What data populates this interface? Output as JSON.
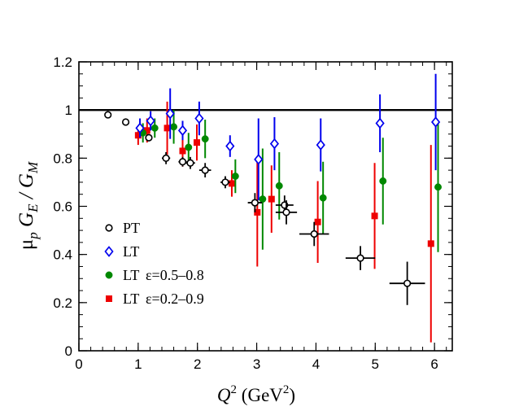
{
  "chart_data": {
    "type": "scatter",
    "xlim": [
      0,
      6.3
    ],
    "ylim": [
      0,
      1.2
    ],
    "x_ticks": [
      "0",
      "1",
      "2",
      "3",
      "4",
      "5",
      "6"
    ],
    "y_ticks": [
      "0",
      "0.2",
      "0.4",
      "0.6",
      "0.8",
      "1",
      "1.2"
    ],
    "reference_line_y": 1,
    "xlabel": {
      "main": "Q",
      "sup": "2",
      "unit_open": " (GeV",
      "unit_sup": "2",
      "unit_close": ")"
    },
    "ylabel": {
      "mu": "μ",
      "mu_sub": "p",
      "ge": " G",
      "ge_sub": "E",
      "slash": " / G",
      "gm_sub": "M"
    },
    "legend_position": "bottom-left",
    "series": [
      {
        "name": "PT",
        "marker": "circle-open",
        "color": "#000000",
        "points": [
          {
            "x": 0.49,
            "y": 0.98,
            "ye": 0.0,
            "xe": 0.0
          },
          {
            "x": 0.79,
            "y": 0.95,
            "ye": 0.0,
            "xe": 0.0
          },
          {
            "x": 1.18,
            "y": 0.885,
            "ye": 0.015,
            "xe": 0.0
          },
          {
            "x": 1.47,
            "y": 0.8,
            "ye": 0.025,
            "xe": 0.07
          },
          {
            "x": 1.75,
            "y": 0.785,
            "ye": 0.02,
            "xe": 0.07
          },
          {
            "x": 1.88,
            "y": 0.78,
            "ye": 0.025,
            "xe": 0.08
          },
          {
            "x": 2.13,
            "y": 0.75,
            "ye": 0.03,
            "xe": 0.1
          },
          {
            "x": 2.47,
            "y": 0.7,
            "ye": 0.025,
            "xe": 0.08
          },
          {
            "x": 2.97,
            "y": 0.615,
            "ye": 0.04,
            "xe": 0.12
          },
          {
            "x": 3.47,
            "y": 0.605,
            "ye": 0.04,
            "xe": 0.15
          },
          {
            "x": 3.5,
            "y": 0.575,
            "ye": 0.05,
            "xe": 0.18
          },
          {
            "x": 3.97,
            "y": 0.485,
            "ye": 0.05,
            "xe": 0.25
          },
          {
            "x": 4.75,
            "y": 0.385,
            "ye": 0.05,
            "xe": 0.25
          },
          {
            "x": 5.54,
            "y": 0.28,
            "ye": 0.09,
            "xe": 0.3
          }
        ]
      },
      {
        "name": "LT",
        "marker": "diamond-open",
        "color": "#0000ee",
        "points": [
          {
            "x": 1.03,
            "y": 0.925,
            "ye": 0.04
          },
          {
            "x": 1.21,
            "y": 0.955,
            "ye": 0.04
          },
          {
            "x": 1.54,
            "y": 0.985,
            "ye": 0.105
          },
          {
            "x": 1.75,
            "y": 0.915,
            "ye": 0.04
          },
          {
            "x": 2.03,
            "y": 0.965,
            "ye": 0.07
          },
          {
            "x": 2.55,
            "y": 0.85,
            "ye": 0.045
          },
          {
            "x": 3.03,
            "y": 0.795,
            "ye": 0.17
          },
          {
            "x": 3.3,
            "y": 0.86,
            "ye": 0.11
          },
          {
            "x": 4.08,
            "y": 0.855,
            "ye": 0.11
          },
          {
            "x": 5.08,
            "y": 0.945,
            "ye": 0.12
          },
          {
            "x": 6.02,
            "y": 0.95,
            "ye": 0.2
          }
        ]
      },
      {
        "name": "LT",
        "name_extra": "ε=0.5–0.8",
        "marker": "circle-filled",
        "color": "#008800",
        "points": [
          {
            "x": 1.08,
            "y": 0.905,
            "ye": 0.04
          },
          {
            "x": 1.28,
            "y": 0.925,
            "ye": 0.04
          },
          {
            "x": 1.6,
            "y": 0.93,
            "ye": 0.07
          },
          {
            "x": 1.85,
            "y": 0.845,
            "ye": 0.06
          },
          {
            "x": 2.13,
            "y": 0.88,
            "ye": 0.08
          },
          {
            "x": 2.64,
            "y": 0.725,
            "ye": 0.07
          },
          {
            "x": 3.1,
            "y": 0.63,
            "ye": 0.21
          },
          {
            "x": 3.38,
            "y": 0.685,
            "ye": 0.14
          },
          {
            "x": 4.12,
            "y": 0.635,
            "ye": 0.15
          },
          {
            "x": 5.13,
            "y": 0.705,
            "ye": 0.18
          },
          {
            "x": 6.06,
            "y": 0.68,
            "ye": 0.27
          }
        ]
      },
      {
        "name": "LT",
        "name_extra": "ε=0.2–0.9",
        "marker": "square-filled",
        "color": "#ee0000",
        "points": [
          {
            "x": 1.0,
            "y": 0.895,
            "ye": 0.04
          },
          {
            "x": 1.15,
            "y": 0.915,
            "ye": 0.05
          },
          {
            "x": 1.49,
            "y": 0.925,
            "ye": 0.11
          },
          {
            "x": 1.75,
            "y": 0.83,
            "ye": 0.065
          },
          {
            "x": 1.99,
            "y": 0.865,
            "ye": 0.075
          },
          {
            "x": 2.58,
            "y": 0.695,
            "ye": 0.055
          },
          {
            "x": 3.01,
            "y": 0.575,
            "ye": 0.225
          },
          {
            "x": 3.25,
            "y": 0.63,
            "ye": 0.14
          },
          {
            "x": 4.03,
            "y": 0.535,
            "ye": 0.17
          },
          {
            "x": 4.99,
            "y": 0.56,
            "ye": 0.22
          },
          {
            "x": 5.94,
            "y": 0.445,
            "ye": 0.41
          }
        ]
      }
    ]
  }
}
